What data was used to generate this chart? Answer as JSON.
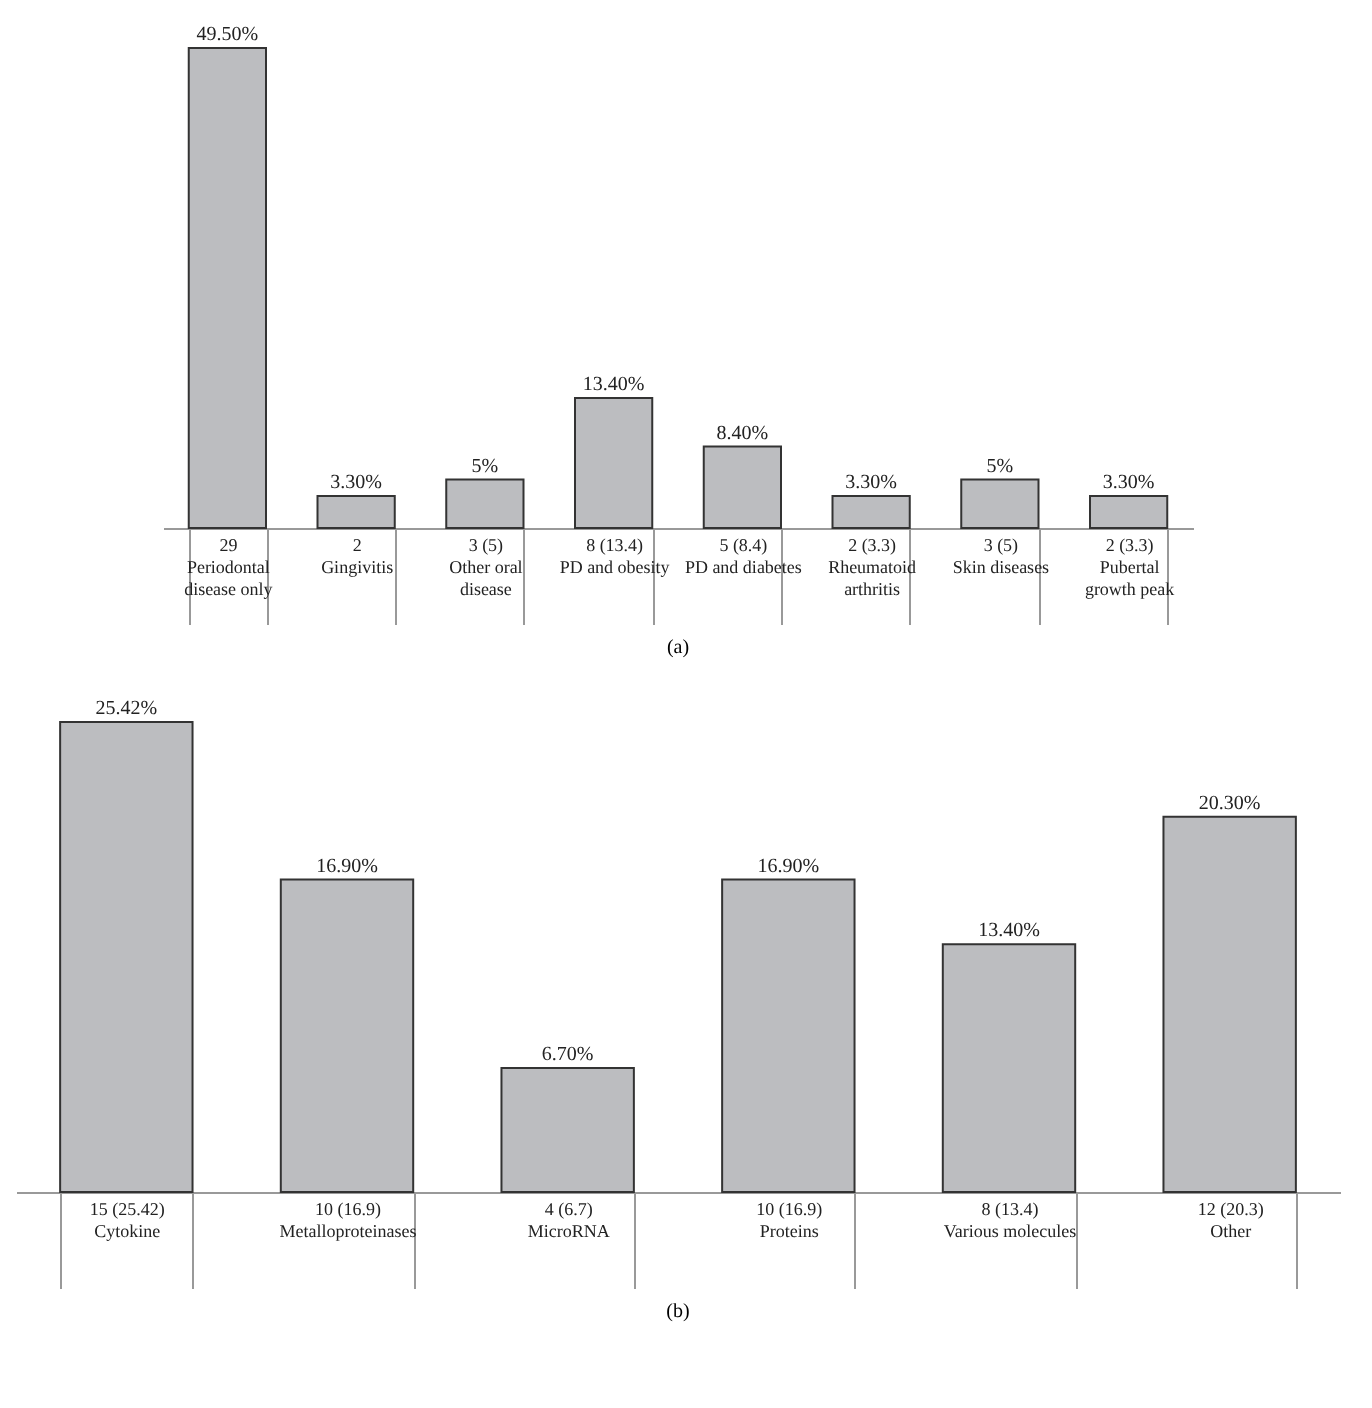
{
  "chart_data": [
    {
      "type": "bar",
      "categories": [
        "29\nPeriodontal\ndisease only",
        "2\nGingivitis",
        "3 (5)\nOther oral\ndisease",
        "8 (13.4)\nPD and obesity",
        "5 (8.4)\nPD and diabetes",
        "2 (3.3)\nRheumatoid\narthritis",
        "3 (5)\nSkin diseases",
        "2 (3.3)\nPubertal\ngrowth peak"
      ],
      "values": [
        49.5,
        3.3,
        5,
        13.4,
        8.4,
        3.3,
        5,
        3.3
      ],
      "value_labels": [
        "49.50%",
        "3.30%",
        "5%",
        "13.40%",
        "8.40%",
        "3.30%",
        "5%",
        "3.30%"
      ],
      "color": "#bcbdc0",
      "grid": false,
      "annotations": [
        "(a)"
      ]
    },
    {
      "type": "bar",
      "categories": [
        "15 (25.42)\nCytokine",
        "10 (16.9)\nMetalloproteinases",
        "4 (6.7)\nMicroRNA",
        "10 (16.9)\nProteins",
        "8 (13.4)\nVarious molecules",
        "12 (20.3)\nOther"
      ],
      "values": [
        25.42,
        16.9,
        6.7,
        16.9,
        13.4,
        20.3
      ],
      "value_labels": [
        "25.42%",
        "16.90%",
        "6.70%",
        "16.90%",
        "13.40%",
        "20.30%"
      ],
      "color": "#bcbdc0",
      "grid": false,
      "annotations": [
        "(b)"
      ]
    }
  ]
}
